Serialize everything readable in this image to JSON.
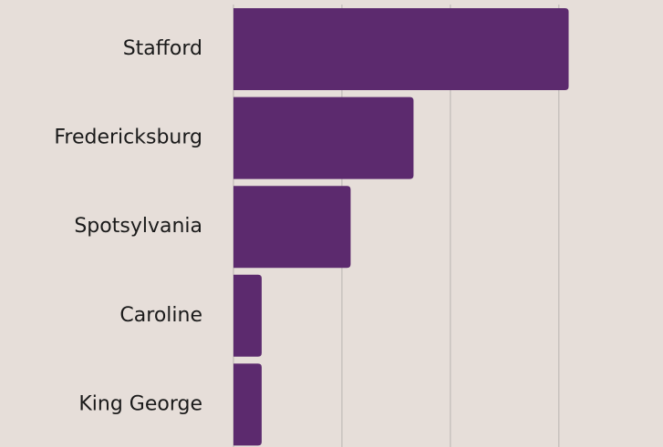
{
  "chart_data": {
    "type": "bar",
    "orientation": "horizontal",
    "categories": [
      "Stafford",
      "Fredericksburg",
      "Spotsylvania",
      "Caroline",
      "King George"
    ],
    "values": [
      3.09,
      1.66,
      1.08,
      0.26,
      0.26
    ],
    "color": "#5c2a6e",
    "xlim": [
      0,
      3.96
    ],
    "xticks": [
      0,
      1,
      2,
      3
    ],
    "grid": true
  }
}
